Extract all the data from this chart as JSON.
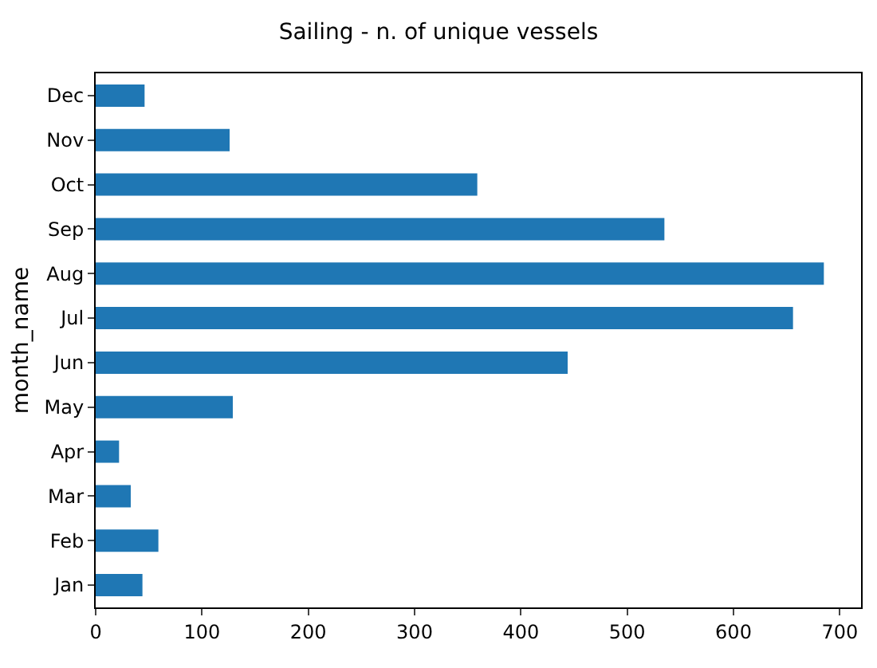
{
  "chart_data": {
    "type": "bar",
    "orientation": "horizontal",
    "title": "Sailing - n. of unique vessels",
    "ylabel": "month_name",
    "categories": [
      "Dec",
      "Nov",
      "Oct",
      "Sep",
      "Aug",
      "Jul",
      "Jun",
      "May",
      "Apr",
      "Mar",
      "Feb",
      "Jan"
    ],
    "values": [
      46,
      126,
      359,
      535,
      685,
      656,
      444,
      129,
      22,
      33,
      59,
      44
    ],
    "color": "#1f77b4",
    "xlim": [
      0,
      720
    ],
    "xticks": [
      0,
      100,
      200,
      300,
      400,
      500,
      600,
      700
    ],
    "grid": false
  }
}
